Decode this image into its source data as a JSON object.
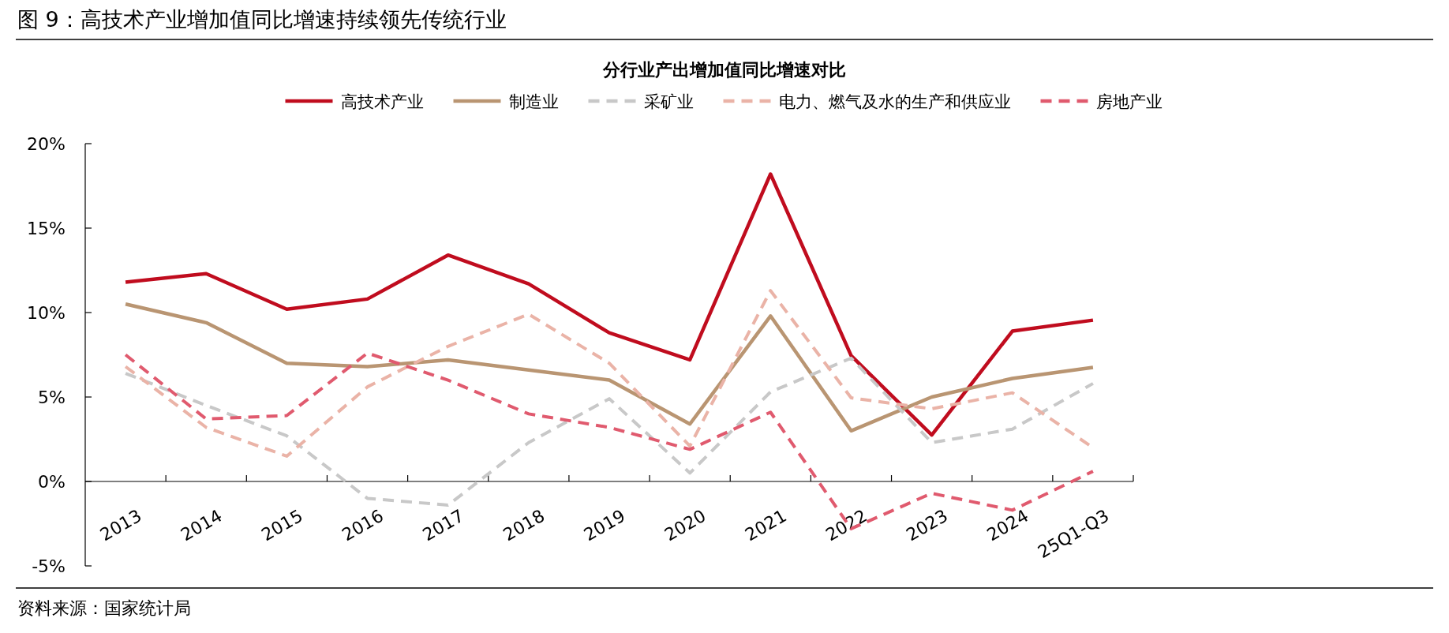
{
  "chart_data": {
    "type": "line",
    "title": "图 9：高技术产业增加值同比增速持续领先传统行业",
    "subtitle": "分行业产出增加值同比增速对比",
    "categories": [
      "2013",
      "2014",
      "2015",
      "2016",
      "2017",
      "2018",
      "2019",
      "2020",
      "2021",
      "2022",
      "2023",
      "2024",
      "25Q1-Q3"
    ],
    "series": [
      {
        "name": "高技术产业",
        "color": "#c00c1e",
        "line_style": "solid",
        "values": [
          11.8,
          12.3,
          10.2,
          10.8,
          13.4,
          11.7,
          8.8,
          7.2,
          18.2,
          7.45,
          2.75,
          8.9,
          9.55
        ]
      },
      {
        "name": "制造业",
        "color": "#b99572",
        "line_style": "solid",
        "values": [
          10.5,
          9.4,
          7.0,
          6.8,
          7.2,
          6.6,
          6.0,
          3.4,
          9.8,
          3.0,
          5.0,
          6.1,
          6.75
        ]
      },
      {
        "name": "采矿业",
        "color": "#c8c8c8",
        "line_style": "dashed",
        "values": [
          6.4,
          4.5,
          2.7,
          -1.0,
          -1.4,
          2.3,
          4.9,
          0.5,
          5.3,
          7.3,
          2.3,
          3.1,
          5.8
        ]
      },
      {
        "name": "电力、燃气及水的生产和供应业",
        "color": "#eab3a7",
        "line_style": "dashed",
        "values": [
          6.8,
          3.2,
          1.5,
          5.6,
          8.0,
          9.9,
          7.0,
          2.1,
          11.3,
          4.95,
          4.3,
          5.25,
          2.0
        ]
      },
      {
        "name": "房地产业",
        "color": "#e05a6e",
        "line_style": "dashed",
        "values": [
          7.5,
          3.7,
          3.9,
          7.6,
          6.0,
          4.0,
          3.2,
          1.9,
          4.1,
          -2.8,
          -0.7,
          -1.7,
          0.6
        ]
      }
    ],
    "ylim": [
      -5,
      20
    ],
    "yticks": [
      {
        "value": -5,
        "label": "-5%"
      },
      {
        "value": 0,
        "label": "0%"
      },
      {
        "value": 5,
        "label": "5%"
      },
      {
        "value": 10,
        "label": "10%"
      },
      {
        "value": 15,
        "label": "15%"
      },
      {
        "value": 20,
        "label": "20%"
      }
    ],
    "legend": "top",
    "grid": false,
    "marker": "none",
    "annotations": [
      "资料来源：国家统计局"
    ]
  }
}
